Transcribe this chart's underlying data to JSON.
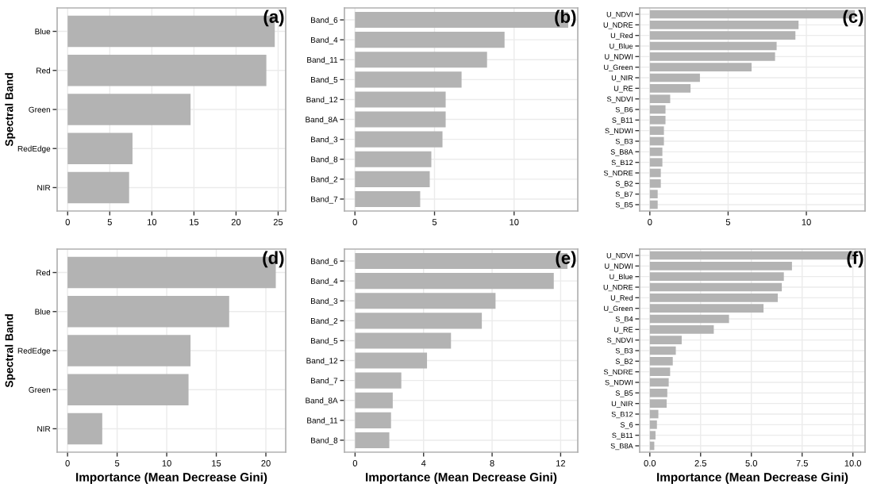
{
  "chart_data": [
    {
      "type": "bar",
      "orientation": "horizontal",
      "ylabel": "Spectral Band",
      "annotations": [
        "(a)"
      ],
      "categories": [
        "Blue",
        "Red",
        "Green",
        "RedEdge",
        "NIR"
      ],
      "values": [
        24.6,
        23.6,
        14.6,
        7.7,
        7.3
      ],
      "color": "#b3b3b3",
      "xlim": [
        -1.25,
        25.9
      ],
      "xticks": [
        0,
        5,
        10,
        15,
        20,
        25
      ],
      "grid": true
    },
    {
      "type": "bar",
      "orientation": "horizontal",
      "annotations": [
        "(b)"
      ],
      "categories": [
        "Band_6",
        "Band_4",
        "Band_11",
        "Band_5",
        "Band_12",
        "Band_8A",
        "Band_3",
        "Band_8",
        "Band_2",
        "Band_7"
      ],
      "values": [
        13.4,
        9.4,
        8.3,
        6.7,
        5.7,
        5.7,
        5.5,
        4.8,
        4.7,
        4.1
      ],
      "color": "#b3b3b3",
      "xlim": [
        -0.66,
        14.0
      ],
      "xticks": [
        0,
        5,
        10
      ],
      "grid": true
    },
    {
      "type": "bar",
      "orientation": "horizontal",
      "annotations": [
        "(c)"
      ],
      "categories": [
        "U_NDVI",
        "U_NDRE",
        "U_Red",
        "U_Blue",
        "U_NDWI",
        "U_Green",
        "U_NIR",
        "U_RE",
        "S_NDVI",
        "S_B6",
        "S_B11",
        "S_NDWI",
        "S_B3",
        "S_B8A",
        "S_B12",
        "S_NDRE",
        "S_B2",
        "S_B7",
        "S_B5"
      ],
      "values": [
        13.1,
        9.5,
        9.3,
        8.1,
        8.0,
        6.5,
        3.2,
        2.6,
        1.3,
        1.0,
        1.0,
        0.9,
        0.9,
        0.8,
        0.8,
        0.7,
        0.7,
        0.5,
        0.5
      ],
      "color": "#b3b3b3",
      "xlim": [
        -0.65,
        13.75
      ],
      "xticks": [
        0,
        5,
        10
      ],
      "grid": true
    },
    {
      "type": "bar",
      "orientation": "horizontal",
      "ylabel": "Spectral Band",
      "xlabel": "Importance (Mean Decrease Gini)",
      "annotations": [
        "(d)"
      ],
      "categories": [
        "Red",
        "Blue",
        "RedEdge",
        "Green",
        "NIR"
      ],
      "values": [
        21.0,
        16.3,
        12.4,
        12.2,
        3.5
      ],
      "color": "#b3b3b3",
      "xlim": [
        -1.05,
        22.0
      ],
      "xticks": [
        0,
        5,
        10,
        15,
        20
      ],
      "grid": true
    },
    {
      "type": "bar",
      "orientation": "horizontal",
      "xlabel": "Importance (Mean Decrease Gini)",
      "annotations": [
        "(e)"
      ],
      "categories": [
        "Band_6",
        "Band_4",
        "Band_3",
        "Band_2",
        "Band_5",
        "Band_12",
        "Band_7",
        "Band_8A",
        "Band_11",
        "Band_8"
      ],
      "values": [
        12.4,
        11.6,
        8.2,
        7.4,
        5.6,
        4.2,
        2.7,
        2.2,
        2.1,
        2.0
      ],
      "color": "#b3b3b3",
      "xlim": [
        -0.62,
        13.0
      ],
      "xticks": [
        0,
        4,
        8,
        12
      ],
      "grid": true
    },
    {
      "type": "bar",
      "orientation": "horizontal",
      "xlabel": "Importance (Mean Decrease Gini)",
      "annotations": [
        "(f)"
      ],
      "categories": [
        "U_NDVI",
        "U_NDWI",
        "U_Blue",
        "U_NDRE",
        "U_Red",
        "U_Green",
        "S_B4",
        "U_RE",
        "S_NDVI",
        "S_B3",
        "S_B2",
        "S_NDRE",
        "S_NDWI",
        "S_B5",
        "U_NIR",
        "S_B12",
        "S_6",
        "S_B11",
        "S_B8A"
      ],
      "values": [
        10.1,
        7.0,
        6.6,
        6.5,
        6.3,
        5.6,
        3.9,
        3.15,
        1.57,
        1.28,
        1.13,
        1.0,
        0.93,
        0.86,
        0.83,
        0.42,
        0.35,
        0.28,
        0.22
      ],
      "color": "#b3b3b3",
      "xlim": [
        -0.5,
        10.6
      ],
      "xticks": [
        {
          "value": 0,
          "label": "0.0"
        },
        {
          "value": 2.5,
          "label": "2.5"
        },
        {
          "value": 5,
          "label": "5.0"
        },
        {
          "value": 7.5,
          "label": "7.5"
        },
        {
          "value": 10,
          "label": "10.0"
        }
      ],
      "grid": true
    }
  ]
}
